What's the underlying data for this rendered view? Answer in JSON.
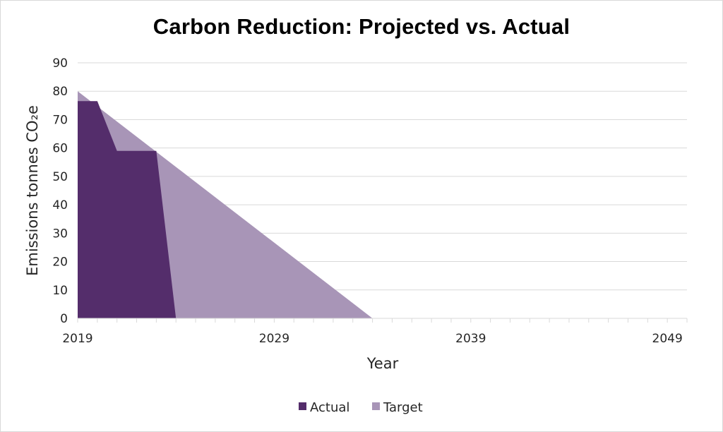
{
  "chart_data": {
    "type": "area",
    "title": "Carbon Reduction: Projected vs. Actual",
    "xlabel": "Year",
    "ylabel": "Emissions tonnes CO₂e",
    "xlim": [
      2019,
      2050
    ],
    "ylim": [
      0,
      90
    ],
    "x_ticks": [
      "2019",
      "2029",
      "2039",
      "2049"
    ],
    "y_ticks": [
      "0",
      "10",
      "20",
      "30",
      "40",
      "50",
      "60",
      "70",
      "80",
      "90"
    ],
    "grid": true,
    "legend_position": "bottom",
    "series": [
      {
        "name": "Target",
        "color": "#a895b7",
        "x": [
          2019,
          2034
        ],
        "y": [
          80,
          0
        ]
      },
      {
        "name": "Actual",
        "color": "#542d6b",
        "x": [
          2019,
          2020,
          2021,
          2023,
          2024
        ],
        "y": [
          76.5,
          76.5,
          59,
          59,
          0
        ]
      }
    ]
  }
}
